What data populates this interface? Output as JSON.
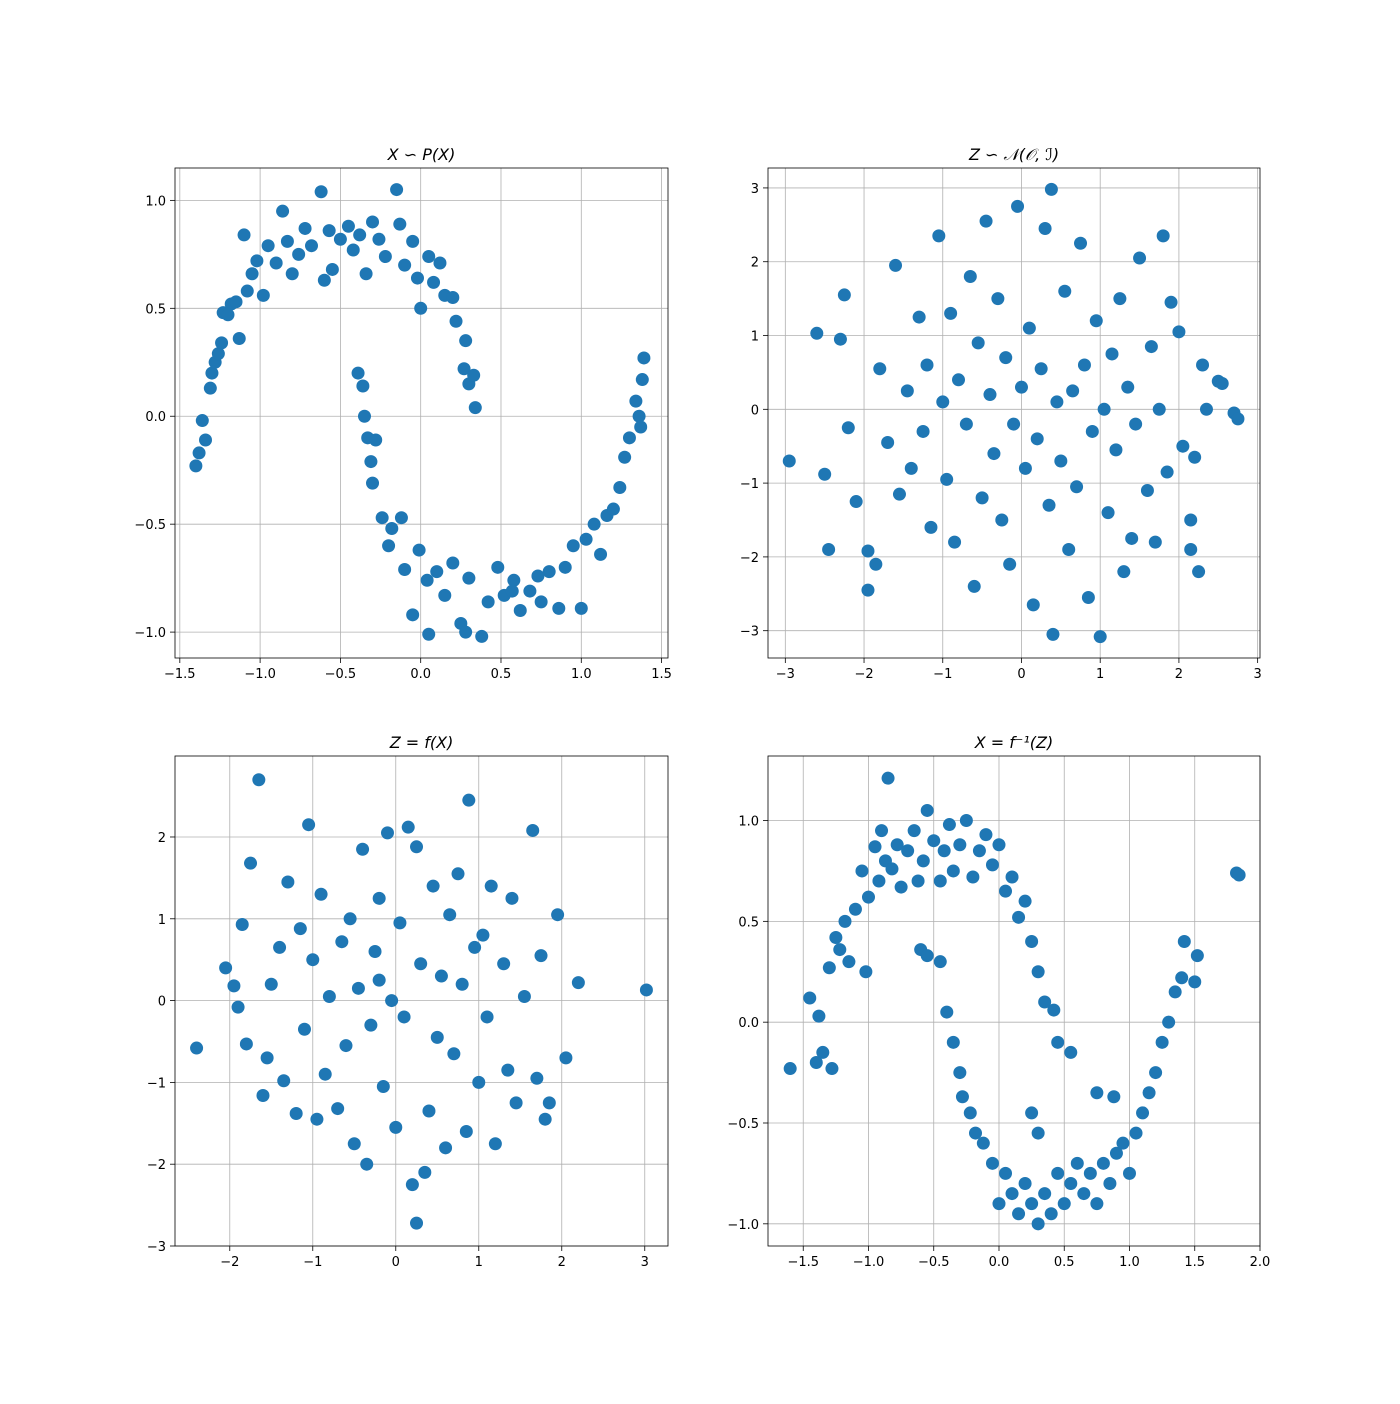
{
  "chart_data": [
    {
      "type": "scatter",
      "title": "X  ∽  P(X)",
      "color": "#1f77b4",
      "grid": true,
      "xlim": [
        -1.53,
        1.54
      ],
      "ylim": [
        -1.12,
        1.15
      ],
      "xticks": [
        {
          "value": -1.5,
          "label": "−1.5"
        },
        {
          "value": -1.0,
          "label": "−1.0"
        },
        {
          "value": -0.5,
          "label": "−0.5"
        },
        {
          "value": 0.0,
          "label": "0.0"
        },
        {
          "value": 0.5,
          "label": "0.5"
        },
        {
          "value": 1.0,
          "label": "1.0"
        },
        {
          "value": 1.5,
          "label": "1.5"
        }
      ],
      "yticks": [
        {
          "value": -1.0,
          "label": "−1.0"
        },
        {
          "value": -0.5,
          "label": "−0.5"
        },
        {
          "value": 0.0,
          "label": "0.0"
        },
        {
          "value": 0.5,
          "label": "0.5"
        },
        {
          "value": 1.0,
          "label": "1.0"
        }
      ],
      "x": [
        -1.4,
        -1.38,
        -1.36,
        -1.34,
        -1.31,
        -1.3,
        -1.28,
        -1.26,
        -1.24,
        -1.23,
        -1.2,
        -1.18,
        -1.15,
        -1.13,
        -1.1,
        -1.08,
        -1.05,
        -1.02,
        -0.98,
        -0.95,
        -0.9,
        -0.86,
        -0.83,
        -0.8,
        -0.76,
        -0.72,
        -0.68,
        -0.62,
        -0.6,
        -0.57,
        -0.55,
        -0.5,
        -0.45,
        -0.42,
        -0.38,
        -0.34,
        -0.3,
        -0.26,
        -0.22,
        -0.15,
        -0.13,
        -0.1,
        -0.05,
        -0.02,
        0.0,
        0.05,
        0.08,
        0.12,
        0.15,
        0.2,
        0.22,
        0.27,
        0.28,
        0.3,
        0.33,
        0.34,
        -0.39,
        -0.36,
        -0.35,
        -0.33,
        -0.31,
        -0.3,
        -0.28,
        -0.24,
        -0.2,
        -0.18,
        -0.12,
        -0.1,
        -0.05,
        -0.01,
        0.04,
        0.05,
        0.1,
        0.15,
        0.2,
        0.25,
        0.28,
        0.3,
        0.38,
        0.42,
        0.48,
        0.52,
        0.58,
        0.62,
        0.68,
        0.75,
        0.8,
        0.86,
        0.9,
        0.95,
        1.0,
        1.03,
        1.08,
        1.12,
        1.16,
        1.2,
        1.24,
        1.27,
        1.3,
        1.34,
        1.36,
        1.38,
        1.39,
        1.37,
        0.57,
        0.73
      ],
      "y": [
        -0.23,
        -0.17,
        -0.02,
        -0.11,
        0.13,
        0.2,
        0.25,
        0.29,
        0.34,
        0.48,
        0.47,
        0.52,
        0.53,
        0.36,
        0.84,
        0.58,
        0.66,
        0.72,
        0.56,
        0.79,
        0.71,
        0.95,
        0.81,
        0.66,
        0.75,
        0.87,
        0.79,
        1.04,
        0.63,
        0.86,
        0.68,
        0.82,
        0.88,
        0.77,
        0.84,
        0.66,
        0.9,
        0.82,
        0.74,
        1.05,
        0.89,
        0.7,
        0.81,
        0.64,
        0.5,
        0.74,
        0.62,
        0.71,
        0.56,
        0.55,
        0.44,
        0.22,
        0.35,
        0.15,
        0.19,
        0.04,
        0.2,
        0.14,
        0.0,
        -0.1,
        -0.21,
        -0.31,
        -0.11,
        -0.47,
        -0.6,
        -0.52,
        -0.47,
        -0.71,
        -0.92,
        -0.62,
        -0.76,
        -1.01,
        -0.72,
        -0.83,
        -0.68,
        -0.96,
        -1.0,
        -0.75,
        -1.02,
        -0.86,
        -0.7,
        -0.83,
        -0.76,
        -0.9,
        -0.81,
        -0.86,
        -0.72,
        -0.89,
        -0.7,
        -0.6,
        -0.89,
        -0.57,
        -0.5,
        -0.64,
        -0.46,
        -0.43,
        -0.33,
        -0.19,
        -0.1,
        0.07,
        0.0,
        0.17,
        0.27,
        -0.05,
        -0.81,
        -0.74
      ]
    },
    {
      "type": "scatter",
      "title": "Z  ∽  𝒩(𝒪, ℐ)",
      "color": "#1f77b4",
      "grid": true,
      "xlim": [
        -3.22,
        3.03
      ],
      "ylim": [
        -3.37,
        3.27
      ],
      "xticks": [
        {
          "value": -3,
          "label": "−3"
        },
        {
          "value": -2,
          "label": "−2"
        },
        {
          "value": -1,
          "label": "−1"
        },
        0,
        1,
        2,
        3
      ],
      "yticks": [
        {
          "value": -3,
          "label": "−3"
        },
        {
          "value": -2,
          "label": "−2"
        },
        {
          "value": -1,
          "label": "−1"
        },
        0,
        1,
        2,
        3
      ],
      "x": [
        -2.95,
        -2.6,
        -2.5,
        -2.45,
        -2.3,
        -2.25,
        -2.2,
        -2.1,
        -1.95,
        -1.95,
        -1.85,
        -1.8,
        -1.7,
        -1.6,
        -1.55,
        -1.45,
        -1.4,
        -1.3,
        -1.25,
        -1.2,
        -1.15,
        -1.05,
        -1.0,
        -0.95,
        -0.9,
        -0.85,
        -0.8,
        -0.7,
        -0.65,
        -0.6,
        -0.55,
        -0.5,
        -0.45,
        -0.4,
        -0.35,
        -0.3,
        -0.25,
        -0.2,
        -0.15,
        -0.1,
        -0.05,
        0.0,
        0.05,
        0.1,
        0.15,
        0.2,
        0.25,
        0.3,
        0.35,
        0.38,
        0.4,
        0.45,
        0.5,
        0.55,
        0.6,
        0.65,
        0.7,
        0.75,
        0.8,
        0.85,
        0.9,
        0.95,
        1.0,
        1.05,
        1.1,
        1.15,
        1.2,
        1.25,
        1.3,
        1.35,
        1.4,
        1.45,
        1.5,
        1.6,
        1.65,
        1.7,
        1.75,
        1.8,
        1.85,
        1.9,
        2.0,
        2.05,
        2.15,
        2.2,
        2.25,
        2.3,
        2.35,
        2.5,
        2.55,
        2.7,
        2.75,
        2.15
      ],
      "y": [
        -0.7,
        1.03,
        -0.88,
        -1.9,
        0.95,
        1.55,
        -0.25,
        -1.25,
        -2.45,
        -1.92,
        -2.1,
        0.55,
        -0.45,
        1.95,
        -1.15,
        0.25,
        -0.8,
        1.25,
        -0.3,
        0.6,
        -1.6,
        2.35,
        0.1,
        -0.95,
        1.3,
        -1.8,
        0.4,
        -0.2,
        1.8,
        -2.4,
        0.9,
        -1.2,
        2.55,
        0.2,
        -0.6,
        1.5,
        -1.5,
        0.7,
        -2.1,
        -0.2,
        2.75,
        0.3,
        -0.8,
        1.1,
        -2.65,
        -0.4,
        0.55,
        2.45,
        -1.3,
        2.98,
        -3.05,
        0.1,
        -0.7,
        1.6,
        -1.9,
        0.25,
        -1.05,
        2.25,
        0.6,
        -2.55,
        -0.3,
        1.2,
        -3.08,
        0.0,
        -1.4,
        0.75,
        -0.55,
        1.5,
        -2.2,
        0.3,
        -1.75,
        -0.2,
        2.05,
        -1.1,
        0.85,
        -1.8,
        0.0,
        2.35,
        -0.85,
        1.45,
        1.05,
        -0.5,
        -1.9,
        -0.65,
        -2.2,
        0.6,
        0.0,
        0.38,
        0.35,
        -0.05,
        -0.13,
        -1.5
      ]
    },
    {
      "type": "scatter",
      "title": "Z  =  f(X)",
      "color": "#1f77b4",
      "grid": true,
      "xlim": [
        -2.66,
        3.28
      ],
      "ylim": [
        -3.0,
        2.99
      ],
      "xticks": [
        {
          "value": -2,
          "label": "−2"
        },
        {
          "value": -1,
          "label": "−1"
        },
        0,
        1,
        2,
        3
      ],
      "yticks": [
        {
          "value": -3,
          "label": "−3"
        },
        {
          "value": -2,
          "label": "−2"
        },
        {
          "value": -1,
          "label": "−1"
        },
        0,
        1,
        2
      ],
      "x": [
        -2.4,
        -2.05,
        -1.95,
        -1.9,
        -1.85,
        -1.8,
        -1.75,
        -1.65,
        -1.6,
        -1.55,
        -1.5,
        -1.4,
        -1.35,
        -1.3,
        -1.2,
        -1.15,
        -1.1,
        -1.05,
        -1.0,
        -0.95,
        -0.9,
        -0.85,
        -0.8,
        -0.7,
        -0.65,
        -0.6,
        -0.55,
        -0.5,
        -0.45,
        -0.4,
        -0.35,
        -0.3,
        -0.25,
        -0.2,
        -0.15,
        -0.1,
        -0.05,
        0.0,
        0.05,
        0.1,
        0.15,
        0.2,
        0.25,
        0.3,
        0.35,
        0.4,
        0.45,
        0.5,
        0.55,
        0.6,
        0.65,
        0.7,
        0.75,
        0.8,
        0.85,
        0.88,
        0.95,
        1.0,
        1.05,
        1.1,
        1.15,
        1.2,
        1.3,
        1.35,
        1.4,
        1.45,
        1.55,
        1.65,
        1.7,
        1.75,
        1.8,
        1.85,
        1.95,
        2.05,
        2.2,
        3.02,
        0.25,
        -0.2
      ],
      "y": [
        -0.58,
        0.4,
        0.18,
        -0.08,
        0.93,
        -0.53,
        1.68,
        2.7,
        -1.16,
        -0.7,
        0.2,
        0.65,
        -0.98,
        1.45,
        -1.38,
        0.88,
        -0.35,
        2.15,
        0.5,
        -1.45,
        1.3,
        -0.9,
        0.05,
        -1.32,
        0.72,
        -0.55,
        1.0,
        -1.75,
        0.15,
        1.85,
        -2.0,
        -0.3,
        0.6,
        1.25,
        -1.05,
        2.05,
        0.0,
        -1.55,
        0.95,
        -0.2,
        2.12,
        -2.25,
        -2.72,
        0.45,
        -2.1,
        -1.35,
        1.4,
        -0.45,
        0.3,
        -1.8,
        1.05,
        -0.65,
        1.55,
        0.2,
        -1.6,
        2.45,
        0.65,
        -1.0,
        0.8,
        -0.2,
        1.4,
        -1.75,
        0.45,
        -0.85,
        1.25,
        -1.25,
        0.05,
        2.08,
        -0.95,
        0.55,
        -1.45,
        -1.25,
        1.05,
        -0.7,
        0.22,
        0.13,
        1.88,
        0.25
      ]
    },
    {
      "type": "scatter",
      "title": "X  =  f⁻¹(Z)",
      "color": "#1f77b4",
      "grid": true,
      "xlim": [
        -1.77,
        2.0
      ],
      "ylim": [
        -1.11,
        1.32
      ],
      "xticks": [
        {
          "value": -1.5,
          "label": "−1.5"
        },
        {
          "value": -1.0,
          "label": "−1.0"
        },
        {
          "value": -0.5,
          "label": "−0.5"
        },
        {
          "value": 0.0,
          "label": "0.0"
        },
        {
          "value": 0.5,
          "label": "0.5"
        },
        {
          "value": 1.0,
          "label": "1.0"
        },
        {
          "value": 1.5,
          "label": "1.5"
        },
        {
          "value": 2.0,
          "label": "2.0"
        }
      ],
      "yticks": [
        {
          "value": -1.0,
          "label": "−1.0"
        },
        {
          "value": -0.5,
          "label": "−0.5"
        },
        {
          "value": 0.0,
          "label": "0.0"
        },
        {
          "value": 0.5,
          "label": "0.5"
        },
        {
          "value": 1.0,
          "label": "1.0"
        }
      ],
      "x": [
        -1.6,
        -1.45,
        -1.4,
        -1.38,
        -1.35,
        -1.3,
        -1.28,
        -1.25,
        -1.22,
        -1.18,
        -1.15,
        -1.1,
        -1.05,
        -1.02,
        -1.0,
        -0.95,
        -0.92,
        -0.9,
        -0.87,
        -0.85,
        -0.82,
        -0.78,
        -0.75,
        -0.7,
        -0.65,
        -0.62,
        -0.58,
        -0.55,
        -0.5,
        -0.45,
        -0.42,
        -0.38,
        -0.35,
        -0.3,
        -0.25,
        -0.2,
        -0.15,
        -0.1,
        -0.05,
        0.0,
        0.05,
        0.1,
        0.15,
        0.2,
        0.25,
        0.3,
        0.35,
        0.42,
        0.45,
        0.55,
        -0.6,
        -0.45,
        -0.55,
        -0.4,
        -0.35,
        -0.3,
        -0.28,
        -0.22,
        -0.18,
        -0.12,
        -0.05,
        0.0,
        0.05,
        0.1,
        0.15,
        0.2,
        0.25,
        0.3,
        0.35,
        0.4,
        0.45,
        0.5,
        0.55,
        0.6,
        0.65,
        0.7,
        0.75,
        0.8,
        0.85,
        0.9,
        0.95,
        1.0,
        1.05,
        1.1,
        1.15,
        1.2,
        1.25,
        1.3,
        1.35,
        1.4,
        1.42,
        1.5,
        1.52,
        1.82,
        1.84,
        0.75,
        0.88,
        0.25,
        0.3
      ],
      "y": [
        -0.23,
        0.12,
        -0.2,
        0.03,
        -0.15,
        0.27,
        -0.23,
        0.42,
        0.36,
        0.5,
        0.3,
        0.56,
        0.75,
        0.25,
        0.62,
        0.87,
        0.7,
        0.95,
        0.8,
        1.21,
        0.76,
        0.88,
        0.67,
        0.85,
        0.95,
        0.7,
        0.8,
        1.05,
        0.9,
        0.7,
        0.85,
        0.98,
        0.75,
        0.88,
        1.0,
        0.72,
        0.85,
        0.93,
        0.78,
        0.88,
        0.65,
        0.72,
        0.52,
        0.6,
        0.4,
        0.25,
        0.1,
        0.06,
        -0.1,
        -0.15,
        0.36,
        0.3,
        0.33,
        0.05,
        -0.1,
        -0.25,
        -0.37,
        -0.45,
        -0.55,
        -0.6,
        -0.7,
        -0.9,
        -0.75,
        -0.85,
        -0.95,
        -0.8,
        -0.9,
        -1.0,
        -0.85,
        -0.95,
        -0.75,
        -0.9,
        -0.8,
        -0.7,
        -0.85,
        -0.75,
        -0.9,
        -0.7,
        -0.8,
        -0.65,
        -0.6,
        -0.75,
        -0.55,
        -0.45,
        -0.35,
        -0.25,
        -0.1,
        0.0,
        0.15,
        0.22,
        0.4,
        0.2,
        0.33,
        0.74,
        0.73,
        -0.35,
        -0.37,
        -0.45,
        -0.55
      ]
    }
  ]
}
